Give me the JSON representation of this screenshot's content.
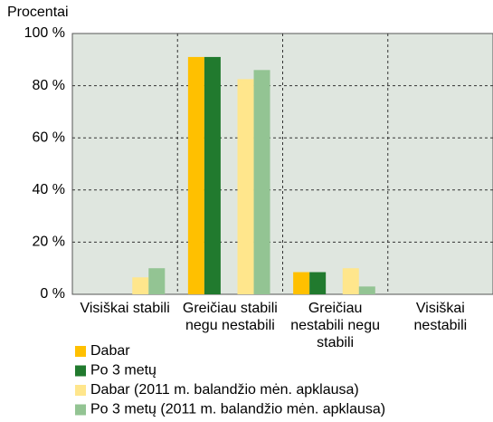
{
  "chart_data": {
    "type": "bar",
    "y_label": "Procentai",
    "categories": [
      "Visiškai stabili",
      "Greičiau stabili\nnegu nestabili",
      "Greičiau\nnestabili negu\nstabili",
      "Visiškai\nnestabili"
    ],
    "series": [
      {
        "name": "Dabar",
        "color": "#ffc000",
        "values": [
          0,
          91,
          8.5,
          0
        ]
      },
      {
        "name": "Po 3 metų",
        "color": "#217a2e",
        "values": [
          0,
          91,
          8.5,
          0
        ]
      },
      {
        "name": "Dabar (2011 m. balandžio mėn. apklausa)",
        "color": "#ffe68c",
        "values": [
          6.5,
          82.5,
          10,
          0
        ]
      },
      {
        "name": "Po 3 metų (2011 m. balandžio mėn. apklausa)",
        "color": "#93c493",
        "values": [
          10,
          86,
          3,
          0
        ]
      }
    ],
    "ylim": [
      0,
      100
    ],
    "yticks": [
      {
        "value": 0,
        "label": "0 %"
      },
      {
        "value": 20,
        "label": "20 %"
      },
      {
        "value": 40,
        "label": "40 %"
      },
      {
        "value": 60,
        "label": "60 %"
      },
      {
        "value": 80,
        "label": "80 %"
      },
      {
        "value": 100,
        "label": "100 %"
      }
    ],
    "grid": true,
    "legend": "bottom"
  }
}
